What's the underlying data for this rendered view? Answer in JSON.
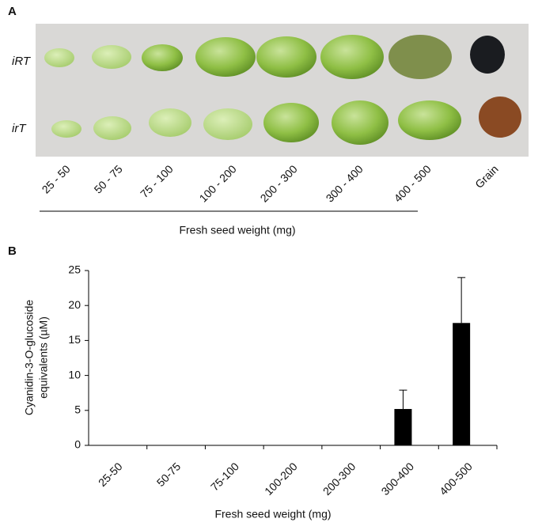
{
  "panel_a": {
    "panel_label": "A",
    "rows": [
      "iRT",
      "irT"
    ],
    "categories": [
      "25 - 50",
      "50 - 75",
      "75 - 100",
      "100 - 200",
      "200 - 300",
      "300 - 400",
      "400 - 500",
      "Grain"
    ],
    "xlabel": "Fresh seed weight (mg)"
  },
  "chart_data": {
    "type": "bar",
    "panel_label": "B",
    "ylabel": [
      "Cyanidin-3-O-glucoside",
      "equivalents (µM)"
    ],
    "xlabel": "Fresh seed weight (mg)",
    "categories": [
      "25-50",
      "50-75",
      "75-100",
      "100-200",
      "200-300",
      "300-400",
      "400-500"
    ],
    "values": [
      0,
      0,
      0,
      0,
      0,
      5.2,
      17.5
    ],
    "errors": [
      null,
      null,
      null,
      null,
      null,
      2.7,
      6.5
    ],
    "color": "#000000",
    "ylim": [
      0,
      25
    ],
    "yticks": [
      0,
      5,
      10,
      15,
      20,
      25
    ]
  }
}
